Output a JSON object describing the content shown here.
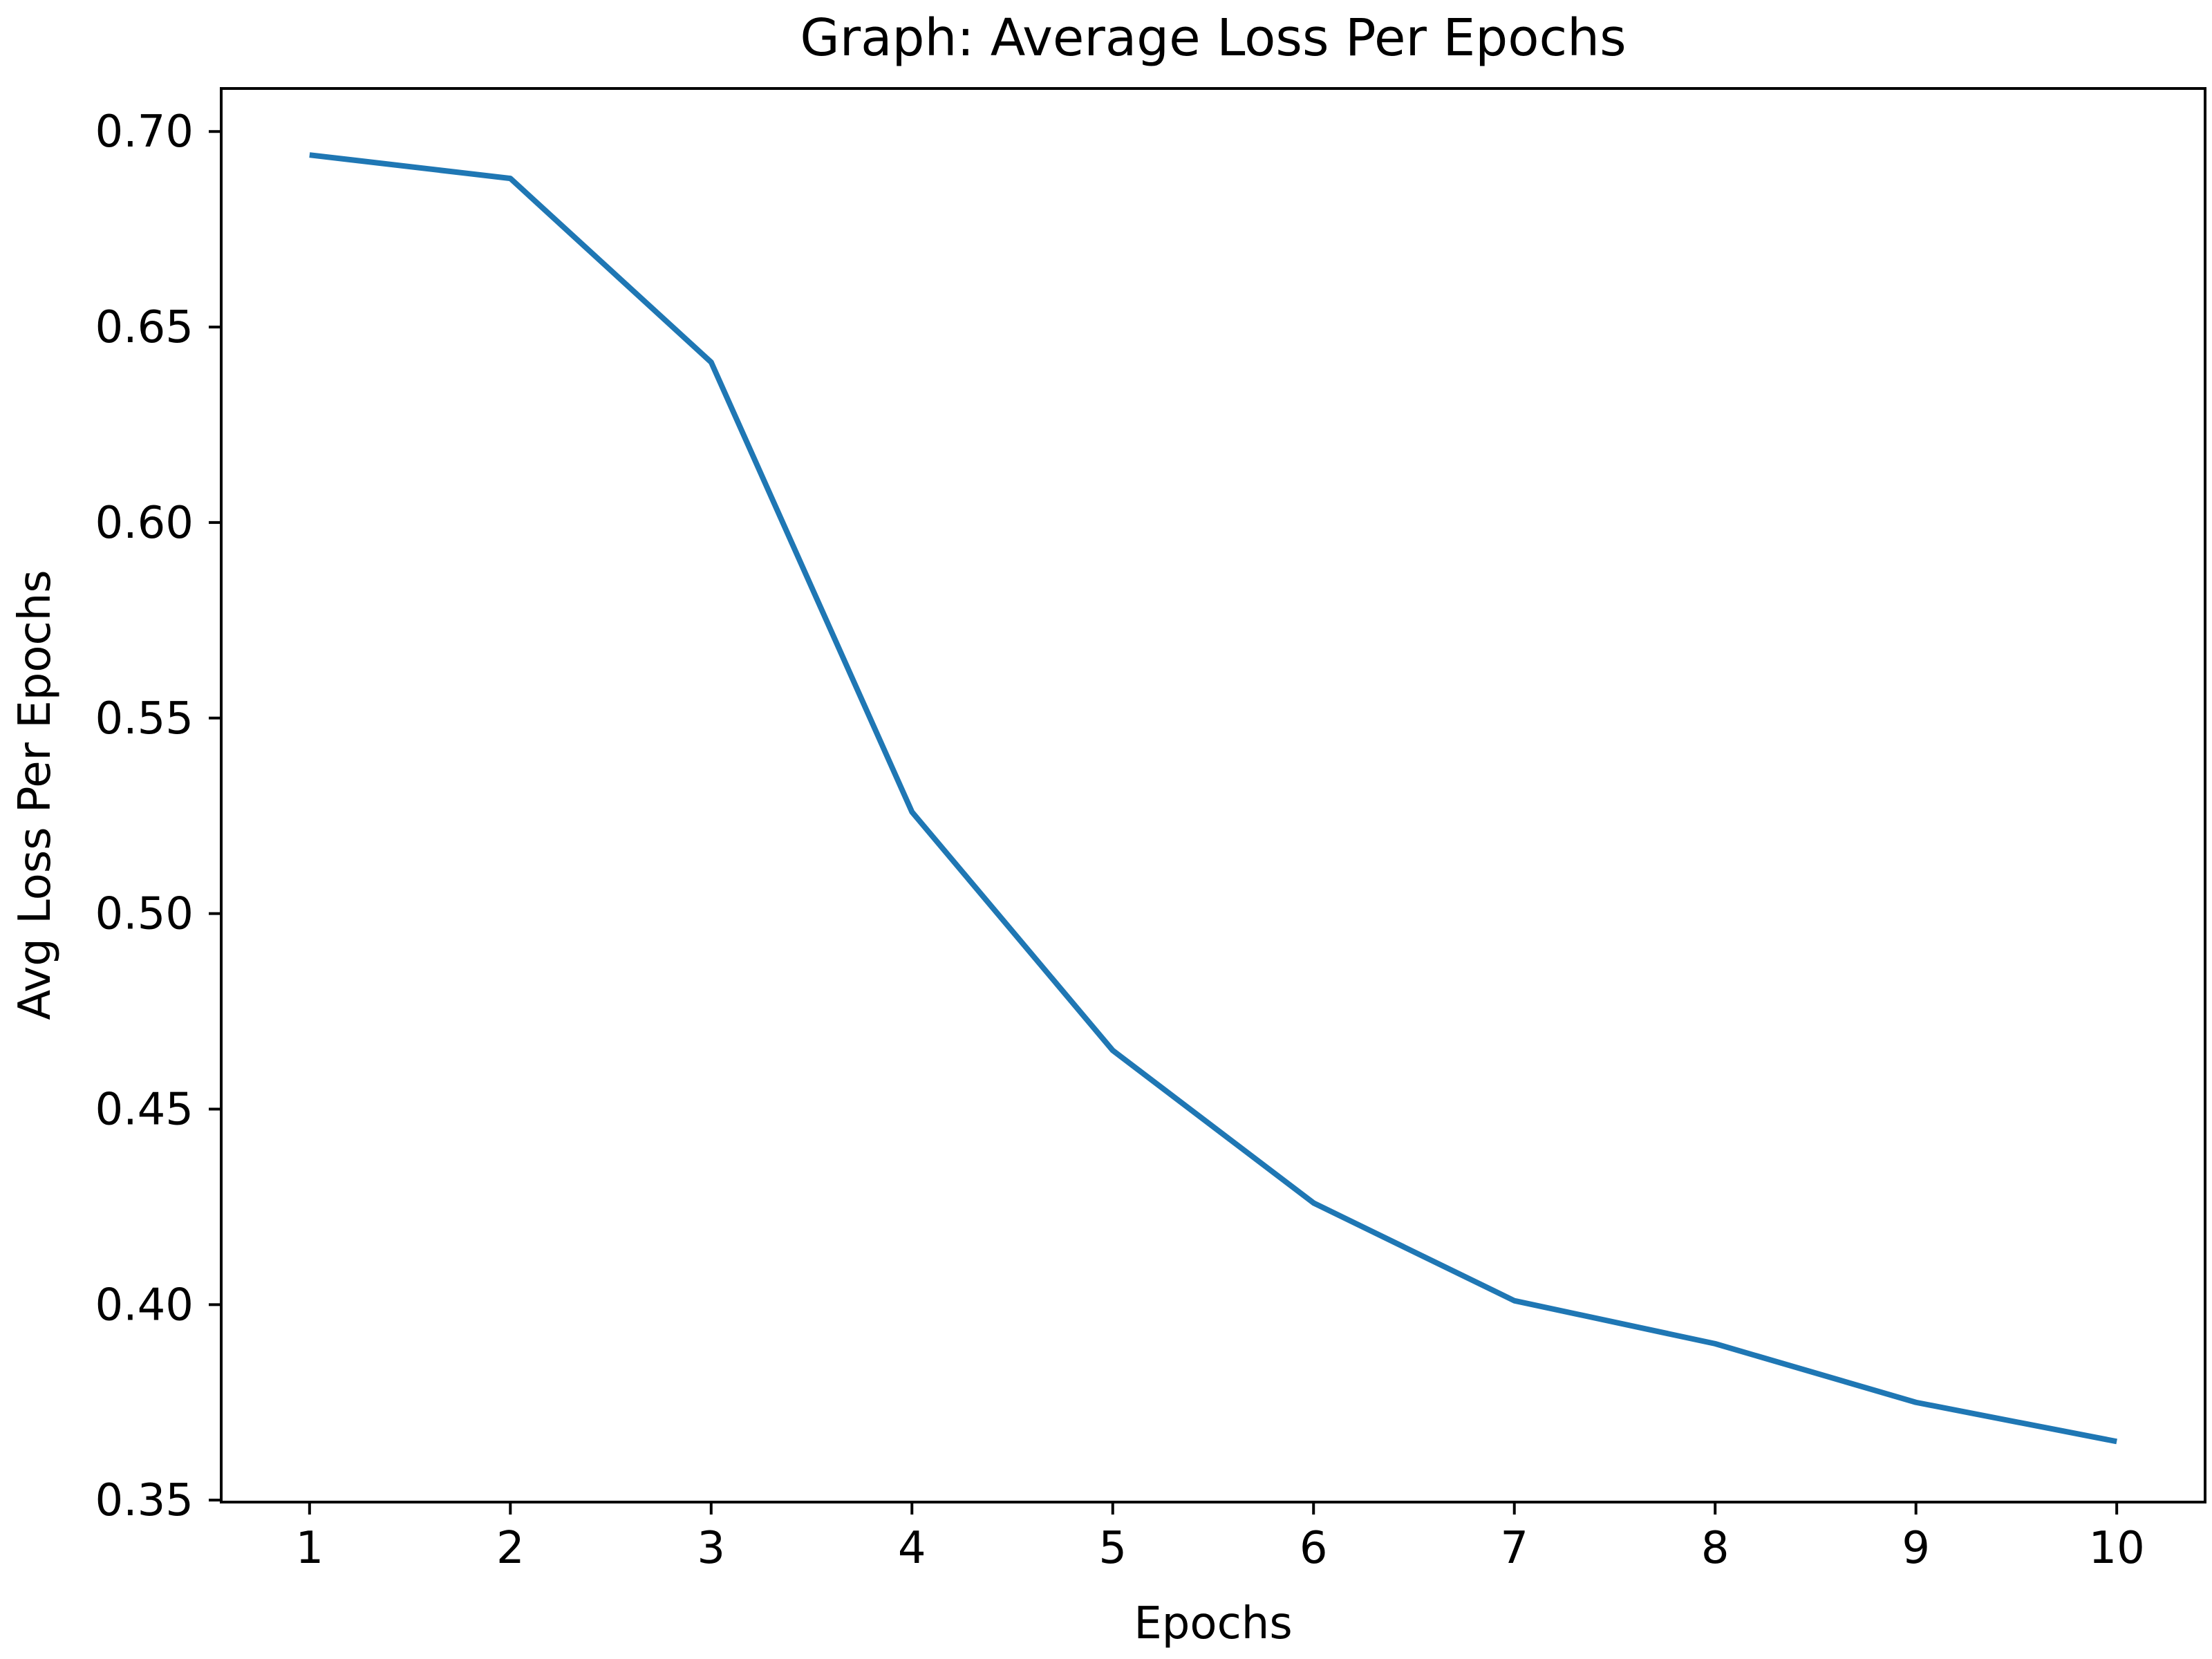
{
  "chart_data": {
    "type": "line",
    "title": "Graph: Average Loss Per Epochs",
    "xlabel": "Epochs",
    "ylabel": "Avg Loss Per Epochs",
    "x": [
      1,
      2,
      3,
      4,
      5,
      6,
      7,
      8,
      9,
      10
    ],
    "series": [
      {
        "values": [
          0.694,
          0.688,
          0.641,
          0.526,
          0.465,
          0.426,
          0.401,
          0.39,
          0.375,
          0.365
        ],
        "color": "#1f77b4"
      }
    ],
    "xlim": [
      0.56,
      10.44
    ],
    "ylim": [
      0.3495,
      0.711
    ],
    "xticks": [
      1,
      2,
      3,
      4,
      5,
      6,
      7,
      8,
      9,
      10
    ],
    "xtick_labels": [
      "1",
      "2",
      "3",
      "4",
      "5",
      "6",
      "7",
      "8",
      "9",
      "10"
    ],
    "yticks": [
      0.35,
      0.4,
      0.45,
      0.5,
      0.55,
      0.6,
      0.65,
      0.7
    ],
    "ytick_labels": [
      "0.35",
      "0.40",
      "0.45",
      "0.50",
      "0.55",
      "0.60",
      "0.65",
      "0.70"
    ],
    "grid": false,
    "legend": "none"
  }
}
